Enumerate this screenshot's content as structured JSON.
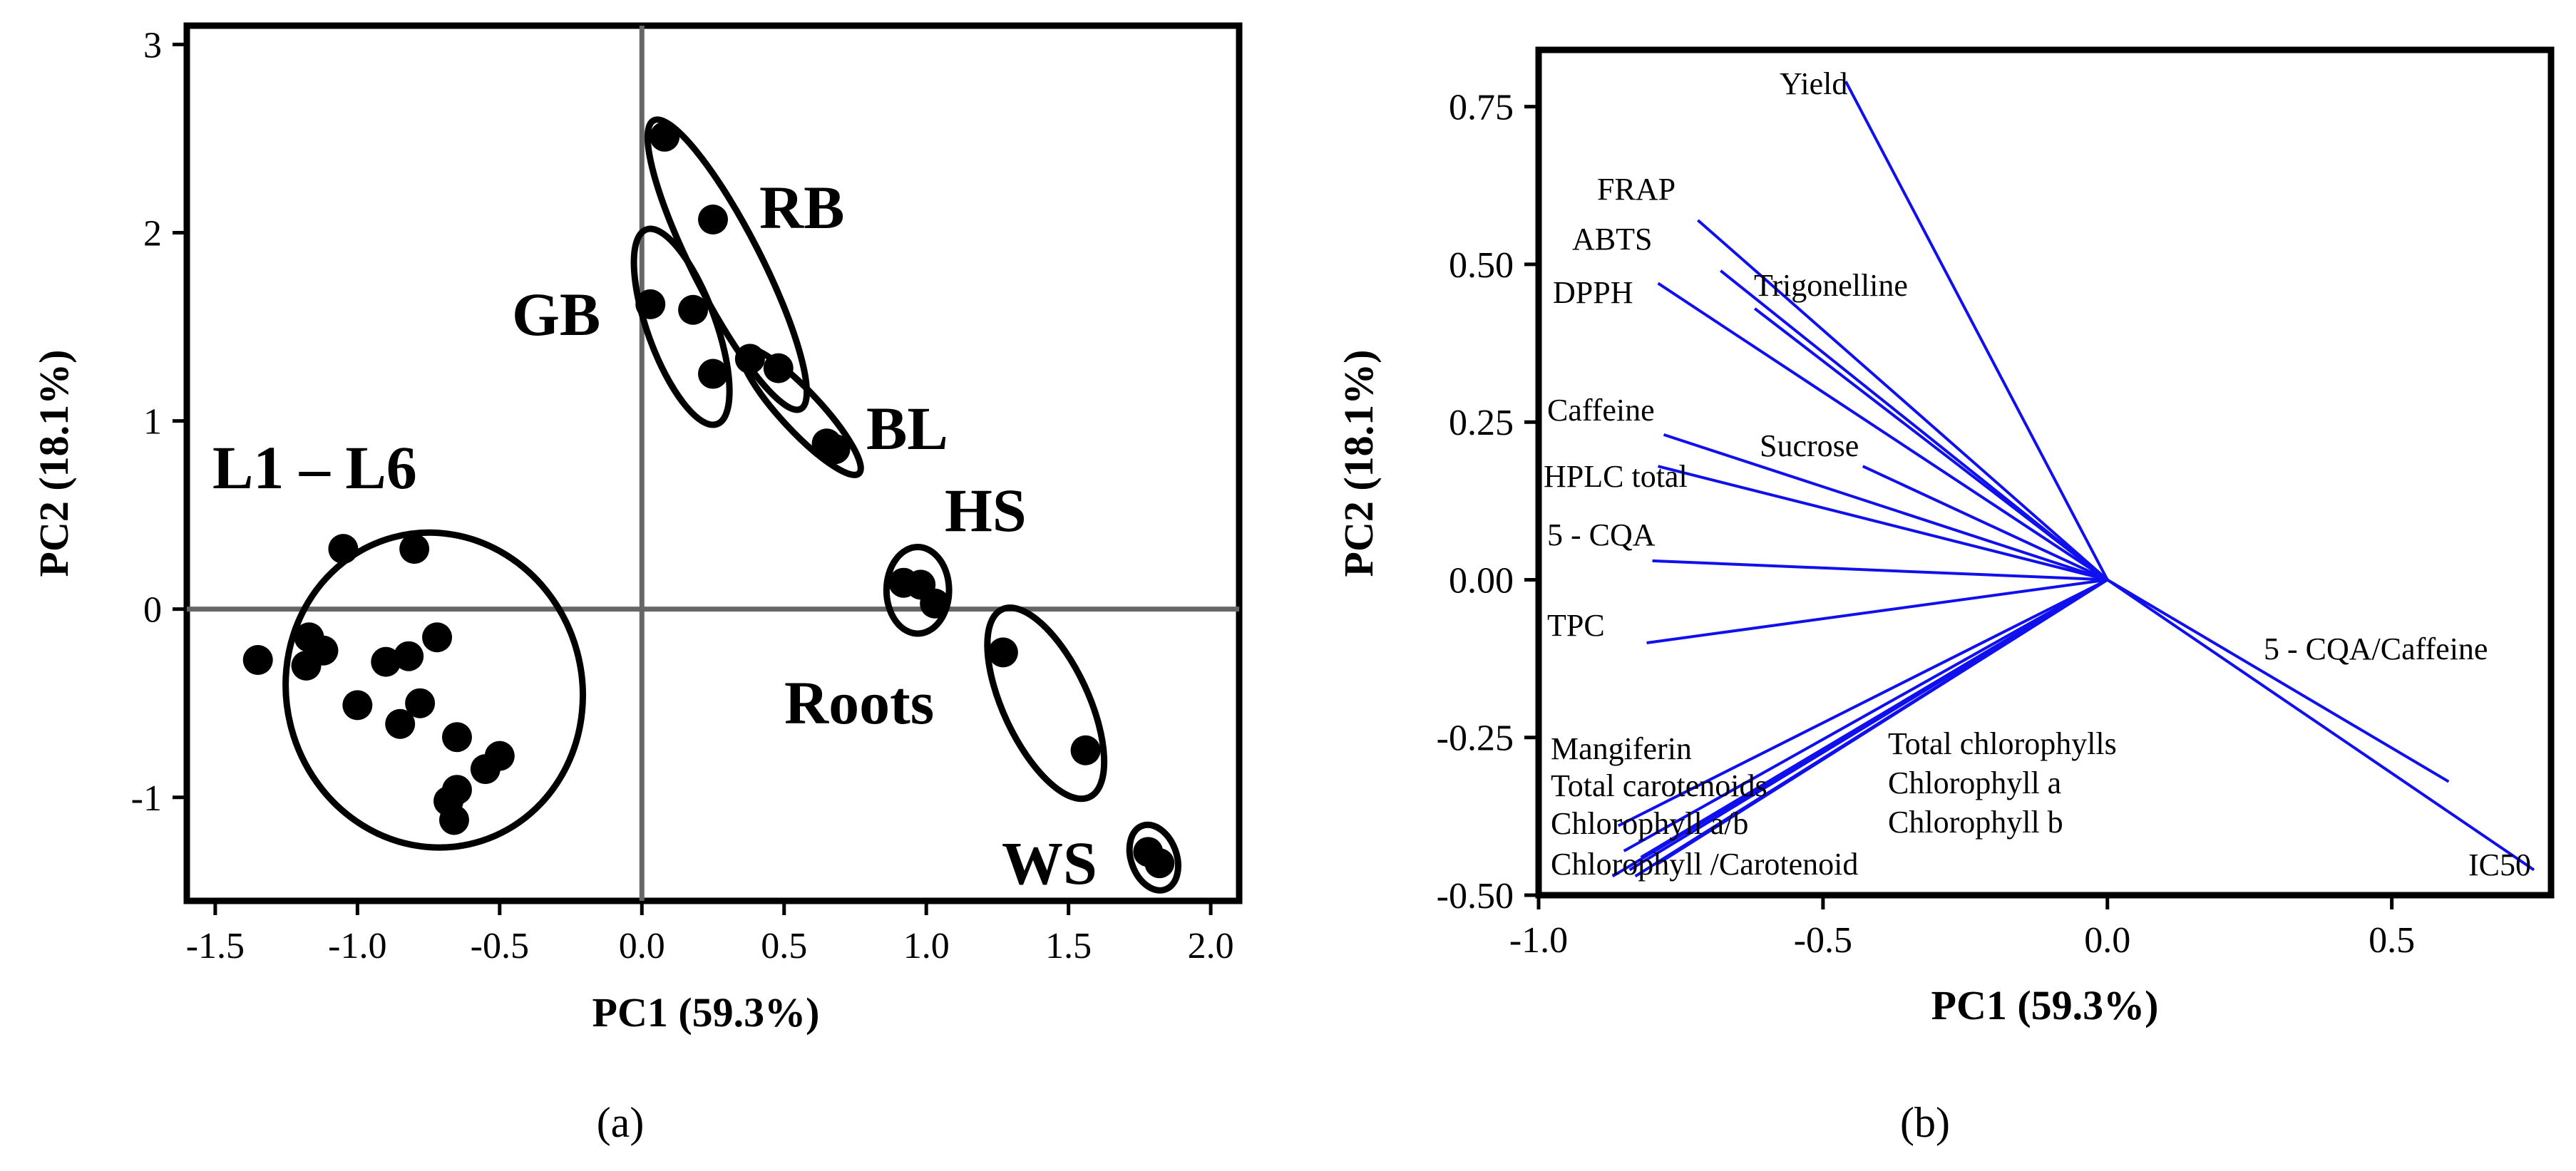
{
  "chart_data": [
    {
      "panel": "a",
      "type": "scatter",
      "caption": "(a)",
      "xlabel": "PC1 (59.3%)",
      "ylabel": "PC2 (18.1%)",
      "xlim": [
        -1.6,
        2.1
      ],
      "ylim": [
        -1.55,
        3.1
      ],
      "xticks": [
        -1.5,
        -1.0,
        -0.5,
        0.0,
        0.5,
        1.0,
        1.5,
        2.0
      ],
      "xtick_labels": [
        "-1.5",
        "-1.0",
        "-0.5",
        "0.0",
        "0.5",
        "1.0",
        "1.5",
        "2.0"
      ],
      "yticks": [
        -1,
        0,
        1,
        2,
        3
      ],
      "ytick_labels": [
        "-1",
        "0",
        "1",
        "2",
        "3"
      ],
      "reference_lines": {
        "x": 0,
        "y": 0
      },
      "groups": [
        {
          "name": "L1 – L6",
          "label": "L1 – L6",
          "points": [
            [
              -1.35,
              -0.27
            ],
            [
              -1.05,
              0.32
            ],
            [
              -0.8,
              0.32
            ],
            [
              -1.17,
              -0.15
            ],
            [
              -1.12,
              -0.22
            ],
            [
              -1.18,
              -0.3
            ],
            [
              -0.9,
              -0.28
            ],
            [
              -0.82,
              -0.25
            ],
            [
              -0.72,
              -0.15
            ],
            [
              -1.0,
              -0.51
            ],
            [
              -0.78,
              -0.5
            ],
            [
              -0.85,
              -0.61
            ],
            [
              -0.65,
              -0.68
            ],
            [
              -0.55,
              -0.85
            ],
            [
              -0.5,
              -0.78
            ],
            [
              -0.65,
              -0.96
            ],
            [
              -0.68,
              -1.02
            ],
            [
              -0.66,
              -1.12
            ]
          ],
          "ellipse": {
            "cx": -0.73,
            "cy": -0.43,
            "rx": 0.52,
            "ry": 0.84,
            "angle_deg": 15
          }
        },
        {
          "name": "RB",
          "label": "RB",
          "points": [
            [
              0.08,
              2.51
            ],
            [
              0.25,
              2.07
            ],
            [
              0.48,
              1.28
            ]
          ],
          "ellipse": {
            "cx": 0.3,
            "cy": 1.83,
            "rx": 0.12,
            "ry": 0.86,
            "angle_deg": 27
          }
        },
        {
          "name": "GB",
          "label": "GB",
          "points": [
            [
              0.03,
              1.62
            ],
            [
              0.18,
              1.59
            ],
            [
              0.25,
              1.25
            ]
          ],
          "ellipse": {
            "cx": 0.14,
            "cy": 1.5,
            "rx": 0.12,
            "ry": 0.55,
            "angle_deg": 20
          }
        },
        {
          "name": "BL",
          "label": "BL",
          "points": [
            [
              0.38,
              1.33
            ],
            [
              0.65,
              0.88
            ],
            [
              0.68,
              0.85
            ]
          ],
          "ellipse": {
            "cx": 0.56,
            "cy": 1.05,
            "rx": 0.07,
            "ry": 0.45,
            "angle_deg": 43
          }
        },
        {
          "name": "HS",
          "label": "HS",
          "points": [
            [
              0.92,
              0.14
            ],
            [
              0.98,
              0.13
            ],
            [
              1.03,
              0.03
            ]
          ],
          "ellipse": {
            "cx": 0.97,
            "cy": 0.1,
            "rx": 0.11,
            "ry": 0.23,
            "angle_deg": 0
          }
        },
        {
          "name": "Roots",
          "label": "Roots",
          "points": [
            [
              1.27,
              -0.23
            ],
            [
              1.56,
              -0.75
            ]
          ],
          "ellipse": {
            "cx": 1.42,
            "cy": -0.5,
            "rx": 0.15,
            "ry": 0.55,
            "angle_deg": 25
          }
        },
        {
          "name": "WS",
          "label": "WS",
          "points": [
            [
              1.78,
              -1.29
            ],
            [
              1.82,
              -1.35
            ]
          ],
          "ellipse": {
            "cx": 1.8,
            "cy": -1.32,
            "rx": 0.08,
            "ry": 0.18,
            "angle_deg": 20
          }
        }
      ]
    },
    {
      "panel": "b",
      "type": "biplot",
      "caption": "(b)",
      "xlabel": "PC1 (59.3%)",
      "ylabel": "PC2 (18.1%)",
      "xlim": [
        -1.0,
        0.78
      ],
      "ylim": [
        -0.5,
        0.84
      ],
      "xticks": [
        -1.0,
        -0.5,
        0.0,
        0.5
      ],
      "xtick_labels": [
        "-1.0",
        "-0.5",
        "0.0",
        "0.5"
      ],
      "yticks": [
        0.75,
        0.5,
        0.25,
        0.0,
        -0.25,
        -0.5
      ],
      "ytick_labels": [
        "0.75",
        "0.50",
        "0.25",
        "0.00",
        "-0.25",
        "-0.50"
      ],
      "loadings": [
        {
          "name": "Yield",
          "x": -0.46,
          "y": 0.79
        },
        {
          "name": "FRAP",
          "x": -0.72,
          "y": 0.57
        },
        {
          "name": "ABTS",
          "x": -0.68,
          "y": 0.49
        },
        {
          "name": "Trigonelline",
          "x": -0.62,
          "y": 0.43
        },
        {
          "name": "DPPH",
          "x": -0.79,
          "y": 0.47
        },
        {
          "name": "Caffeine",
          "x": -0.78,
          "y": 0.23
        },
        {
          "name": "Sucrose",
          "x": -0.43,
          "y": 0.18
        },
        {
          "name": "HPLC total",
          "x": -0.79,
          "y": 0.18
        },
        {
          "name": "5 - CQA",
          "x": -0.8,
          "y": 0.03
        },
        {
          "name": "TPC",
          "x": -0.81,
          "y": -0.1
        },
        {
          "name": "Mangiferin",
          "x": -0.86,
          "y": -0.39
        },
        {
          "name": "Total carotenoids",
          "x": -0.85,
          "y": -0.43
        },
        {
          "name": "Chlorophyll a/b",
          "x": -0.87,
          "y": -0.47
        },
        {
          "name": "Chlorophyll /Carotenoid",
          "x": -0.79,
          "y": -0.45
        },
        {
          "name": "Total chlorophylls",
          "x": -0.82,
          "y": -0.44
        },
        {
          "name": "Chlorophyll a",
          "x": -0.84,
          "y": -0.46
        },
        {
          "name": "Chlorophyll b",
          "x": -0.83,
          "y": -0.47
        },
        {
          "name": "5 - CQA/Caffeine",
          "x": 0.6,
          "y": -0.32
        },
        {
          "name": "IC50",
          "x": 0.75,
          "y": -0.46
        }
      ]
    }
  ]
}
